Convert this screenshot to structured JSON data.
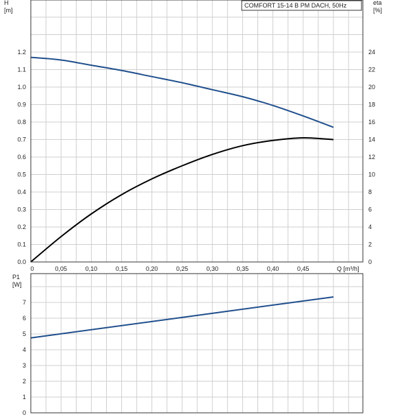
{
  "chart_title": "COMFORT 15-14 B PM DACH, 50Hz",
  "colors": {
    "head_curve": "#1f4e8c",
    "eta_curve": "#000000",
    "power_curve": "#1f4e8c",
    "grid": "#cfcfcf",
    "frame": "#333333"
  },
  "chart_data": [
    {
      "type": "line",
      "xlabel": "Q [m³/h]",
      "ylabel": "H\n[m]",
      "y2label": "eta\n[%]",
      "x_ticks": [
        "0",
        "0,05",
        "0,10",
        "0,15",
        "0,20",
        "0,25",
        "0,30",
        "0,35",
        "0,40",
        "0,45"
      ],
      "y_ticks": [
        "0.0",
        "0.1",
        "0.2",
        "0.3",
        "0.4",
        "0.5",
        "0.6",
        "0.7",
        "0.8",
        "0.9",
        "1.0",
        "1.1",
        "1.2"
      ],
      "y2_ticks": [
        "0",
        "2",
        "4",
        "6",
        "8",
        "10",
        "12",
        "14",
        "16",
        "18",
        "20",
        "22",
        "24"
      ],
      "xlim": [
        0,
        0.5
      ],
      "ylim": [
        0,
        1.2
      ],
      "y2lim": [
        0,
        24
      ],
      "grid": true,
      "series": [
        {
          "axis": "left",
          "x": [
            0,
            0.05,
            0.1,
            0.15,
            0.2,
            0.25,
            0.3,
            0.35,
            0.4,
            0.45,
            0.5
          ],
          "values": [
            1.17,
            1.155,
            1.125,
            1.095,
            1.06,
            1.025,
            0.985,
            0.945,
            0.895,
            0.835,
            0.77
          ]
        },
        {
          "axis": "right",
          "x": [
            0,
            0.05,
            0.1,
            0.15,
            0.2,
            0.25,
            0.3,
            0.35,
            0.4,
            0.45,
            0.5
          ],
          "values": [
            0,
            2.9,
            5.5,
            7.7,
            9.5,
            11.0,
            12.3,
            13.3,
            13.9,
            14.2,
            14.0
          ]
        }
      ]
    },
    {
      "type": "line",
      "ylabel": "P1\n[W]",
      "y_ticks": [
        "0",
        "1",
        "2",
        "3",
        "4",
        "5",
        "6",
        "7"
      ],
      "xlim": [
        0,
        0.5
      ],
      "ylim": [
        0,
        7
      ],
      "grid": true,
      "series": [
        {
          "x": [
            0,
            0.5
          ],
          "values": [
            4.75,
            7.35
          ]
        }
      ]
    }
  ]
}
